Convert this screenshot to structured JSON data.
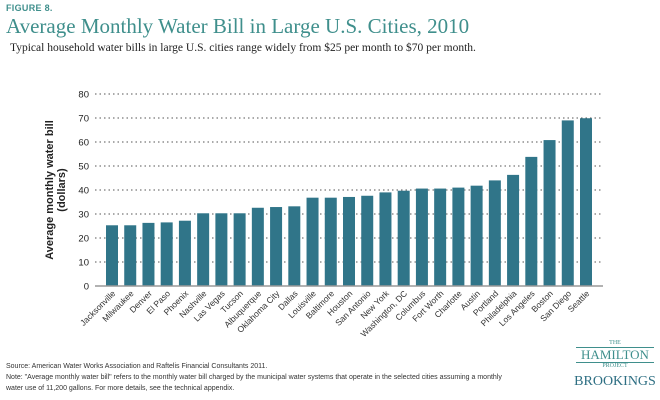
{
  "figure_label": "FIGURE 8.",
  "subtitle": "Typical household water bills in large U.S. cities range widely from $25 per month to $70 per month.",
  "source": "Source: American Water Works Association and Raftelis Financial Consultants 2011.",
  "note": "Note: \"Average monthly water bill\" refers to the monthly water bill charged by the municipal water systems that operate in the selected cities assuming a monthly water use of 11,200 gallons. For more details, see the technical appendix.",
  "logo": {
    "the": "THE",
    "hamilton": "HAMILTON",
    "project": "PROJECT",
    "brookings": "BROOKINGS"
  },
  "colors": {
    "bar": "#307589",
    "title": "#3f8f8c"
  },
  "chart_data": {
    "type": "bar",
    "title": "Average Monthly Water Bill in Large U.S. Cities, 2010",
    "xlabel": "",
    "ylabel": "Average monthly water bill (dollars)",
    "ylim": [
      0,
      80
    ],
    "yticks": [
      0,
      10,
      20,
      30,
      40,
      50,
      60,
      70,
      80
    ],
    "grid": true,
    "categories": [
      "Jacksonville",
      "Milwaukee",
      "Denver",
      "El Paso",
      "Phoenix",
      "Nashville",
      "Las Vegas",
      "Tucson",
      "Albuquerque",
      "Oklahoma City",
      "Dallas",
      "Louisville",
      "Baltimore",
      "Houston",
      "San Antonio",
      "New York",
      "Washington, DC",
      "Columbus",
      "Fort Worth",
      "Charlotte",
      "Austin",
      "Portland",
      "Philadelphia",
      "Los Angeles",
      "Boston",
      "San Diego",
      "Seattle"
    ],
    "values": [
      25.3,
      25.3,
      26.3,
      26.5,
      27.2,
      30.3,
      30.3,
      30.3,
      32.6,
      32.9,
      33.2,
      36.8,
      36.8,
      37.1,
      37.6,
      39.0,
      39.7,
      40.6,
      40.6,
      41.0,
      41.8,
      44.0,
      46.3,
      53.8,
      60.8,
      69.0,
      69.9
    ]
  }
}
